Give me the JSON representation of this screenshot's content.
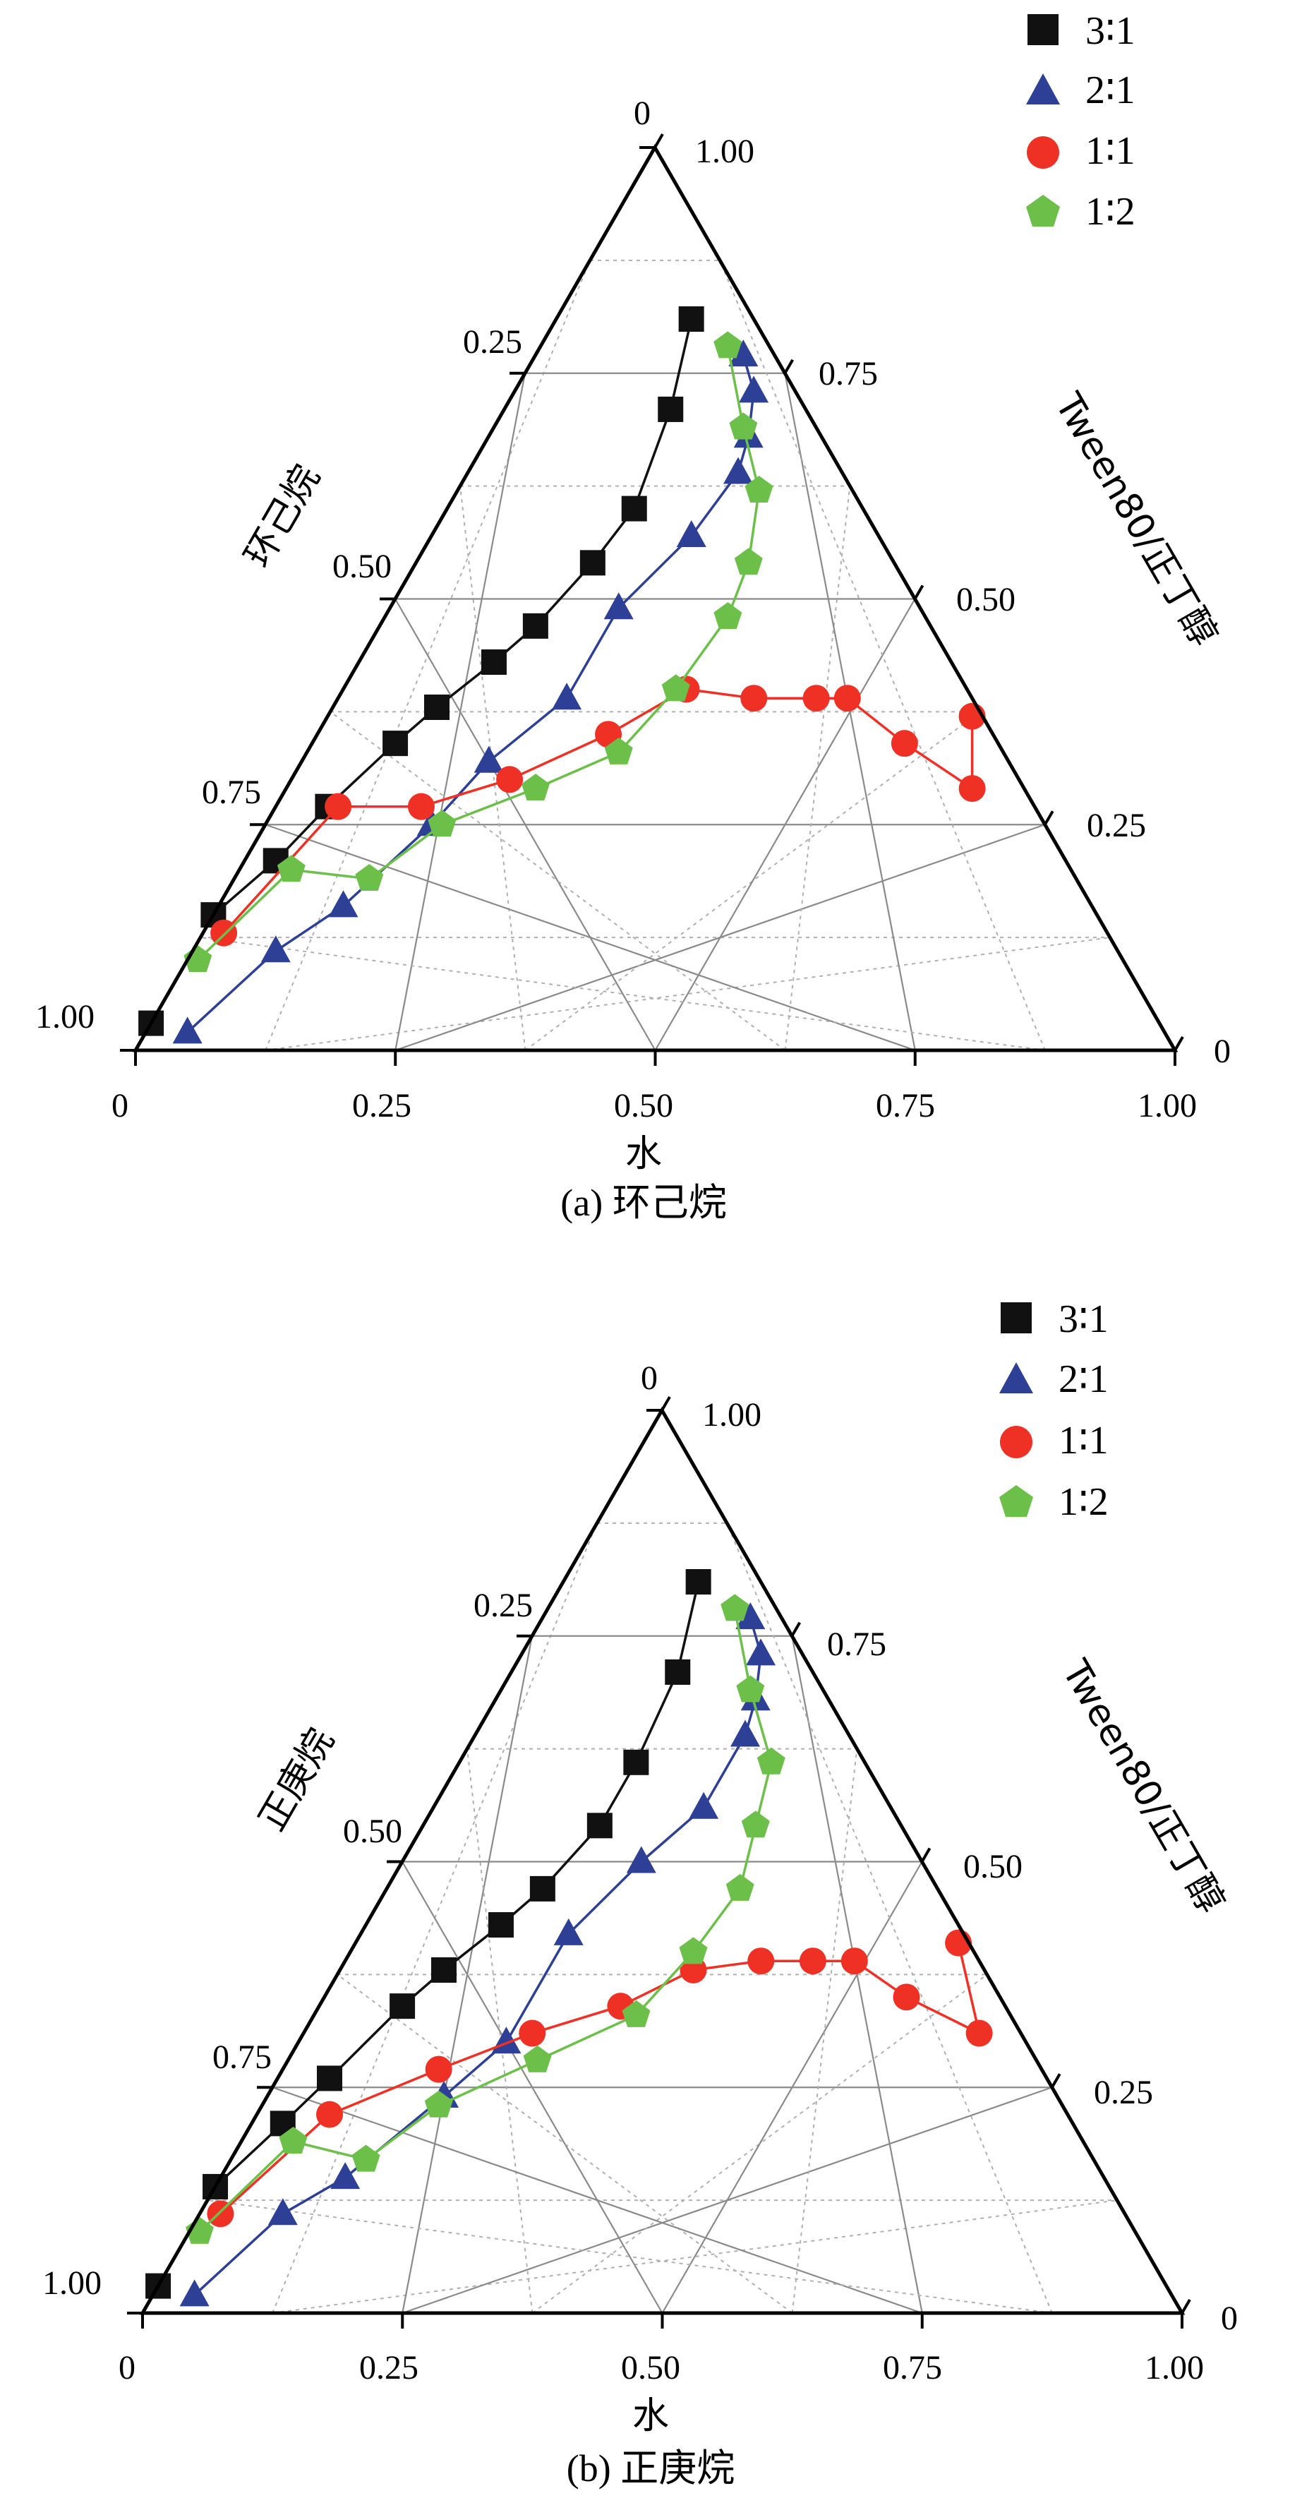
{
  "colors": {
    "s31": "#111111",
    "s21": "#2e3f96",
    "s11": "#ee3124",
    "s12": "#6cc04a"
  },
  "chart_data": [
    {
      "type": "ternary",
      "caption": "(a) 环己烷",
      "axis_labels": {
        "left": "环己烷",
        "right": "Tween80/正丁醇",
        "bottom": "水"
      },
      "tick_labels": {
        "bottom": [
          "0",
          "0.25",
          "0.50",
          "0.75",
          "1.00"
        ],
        "left": [
          "0",
          "0.25",
          "0.50",
          "0.75",
          "1.00"
        ],
        "right": [
          "1.00",
          "0.75",
          "0.50",
          "0.25",
          "0"
        ]
      },
      "grid": true,
      "legend_position": "top-right",
      "series": [
        {
          "name": "3∶1",
          "color": "#111111",
          "marker": "square",
          "points": [
            [
              0.0,
              0.97,
              0.03
            ],
            [
              0.0,
              0.85,
              0.15
            ],
            [
              0.03,
              0.76,
              0.21
            ],
            [
              0.05,
              0.68,
              0.27
            ],
            [
              0.08,
              0.58,
              0.34
            ],
            [
              0.1,
              0.52,
              0.38
            ],
            [
              0.13,
              0.44,
              0.43
            ],
            [
              0.15,
              0.38,
              0.47
            ],
            [
              0.17,
              0.29,
              0.54
            ],
            [
              0.18,
              0.22,
              0.6
            ],
            [
              0.16,
              0.13,
              0.71
            ],
            [
              0.13,
              0.06,
              0.81
            ]
          ]
        },
        {
          "name": "2∶1",
          "color": "#2e3f96",
          "marker": "triangle",
          "points": [
            [
              0.04,
              0.94,
              0.02
            ],
            [
              0.08,
              0.81,
              0.11
            ],
            [
              0.12,
              0.72,
              0.16
            ],
            [
              0.16,
              0.59,
              0.25
            ],
            [
              0.18,
              0.5,
              0.32
            ],
            [
              0.22,
              0.39,
              0.39
            ],
            [
              0.22,
              0.29,
              0.49
            ],
            [
              0.25,
              0.18,
              0.57
            ],
            [
              0.26,
              0.1,
              0.64
            ],
            [
              0.25,
              0.07,
              0.68
            ],
            [
              0.23,
              0.04,
              0.73
            ],
            [
              0.2,
              0.03,
              0.77
            ]
          ]
        },
        {
          "name": "1∶1",
          "color": "#ee3124",
          "marker": "circle",
          "points": [
            [
              0.02,
              0.85,
              0.13
            ],
            [
              0.06,
              0.67,
              0.27
            ],
            [
              0.14,
              0.59,
              0.27
            ],
            [
              0.21,
              0.49,
              0.3
            ],
            [
              0.28,
              0.37,
              0.35
            ],
            [
              0.33,
              0.27,
              0.4
            ],
            [
              0.4,
              0.21,
              0.39
            ],
            [
              0.46,
              0.15,
              0.39
            ],
            [
              0.49,
              0.12,
              0.39
            ],
            [
              0.57,
              0.09,
              0.34
            ],
            [
              0.66,
              0.05,
              0.29
            ],
            [
              0.62,
              0.01,
              0.37
            ]
          ]
        },
        {
          "name": "1∶2",
          "color": "#6cc04a",
          "marker": "pentagon",
          "points": [
            [
              0.01,
              0.89,
              0.1
            ],
            [
              0.05,
              0.75,
              0.2
            ],
            [
              0.13,
              0.68,
              0.19
            ],
            [
              0.17,
              0.58,
              0.25
            ],
            [
              0.24,
              0.47,
              0.29
            ],
            [
              0.3,
              0.37,
              0.33
            ],
            [
              0.32,
              0.28,
              0.4
            ],
            [
              0.33,
              0.19,
              0.48
            ],
            [
              0.32,
              0.14,
              0.54
            ],
            [
              0.29,
              0.09,
              0.62
            ],
            [
              0.24,
              0.07,
              0.69
            ],
            [
              0.18,
              0.04,
              0.78
            ]
          ]
        }
      ]
    },
    {
      "type": "ternary",
      "caption": "(b) 正庚烷",
      "axis_labels": {
        "left": "正庚烷",
        "right": "Tween80/正丁醇",
        "bottom": "水"
      },
      "tick_labels": {
        "bottom": [
          "0",
          "0.25",
          "0.50",
          "0.75",
          "1.00"
        ],
        "left": [
          "0",
          "0.25",
          "0.50",
          "0.75",
          "1.00"
        ],
        "right": [
          "1.00",
          "0.75",
          "0.50",
          "0.25",
          "0"
        ]
      },
      "grid": true,
      "legend_position": "top-right",
      "series": [
        {
          "name": "3∶1",
          "color": "#111111",
          "marker": "square",
          "points": [
            [
              0.0,
              0.97,
              0.03
            ],
            [
              0.0,
              0.86,
              0.14
            ],
            [
              0.03,
              0.76,
              0.21
            ],
            [
              0.05,
              0.69,
              0.26
            ],
            [
              0.08,
              0.58,
              0.34
            ],
            [
              0.1,
              0.52,
              0.38
            ],
            [
              0.13,
              0.44,
              0.43
            ],
            [
              0.15,
              0.38,
              0.47
            ],
            [
              0.17,
              0.29,
              0.54
            ],
            [
              0.17,
              0.22,
              0.61
            ],
            [
              0.16,
              0.13,
              0.71
            ],
            [
              0.13,
              0.06,
              0.81
            ]
          ]
        },
        {
          "name": "2∶1",
          "color": "#2e3f96",
          "marker": "triangle",
          "points": [
            [
              0.04,
              0.94,
              0.02
            ],
            [
              0.08,
              0.81,
              0.11
            ],
            [
              0.12,
              0.73,
              0.15
            ],
            [
              0.17,
              0.59,
              0.24
            ],
            [
              0.2,
              0.5,
              0.3
            ],
            [
              0.2,
              0.38,
              0.42
            ],
            [
              0.23,
              0.27,
              0.5
            ],
            [
              0.26,
              0.18,
              0.56
            ],
            [
              0.26,
              0.1,
              0.64
            ],
            [
              0.25,
              0.07,
              0.68
            ],
            [
              0.23,
              0.04,
              0.73
            ],
            [
              0.2,
              0.03,
              0.77
            ]
          ]
        },
        {
          "name": "1∶1",
          "color": "#ee3124",
          "marker": "circle",
          "points": [
            [
              0.02,
              0.87,
              0.11
            ],
            [
              0.07,
              0.71,
              0.22
            ],
            [
              0.15,
              0.58,
              0.27
            ],
            [
              0.22,
              0.47,
              0.31
            ],
            [
              0.29,
              0.37,
              0.34
            ],
            [
              0.34,
              0.28,
              0.38
            ],
            [
              0.4,
              0.21,
              0.39
            ],
            [
              0.45,
              0.16,
              0.39
            ],
            [
              0.49,
              0.12,
              0.39
            ],
            [
              0.56,
              0.09,
              0.35
            ],
            [
              0.65,
              0.04,
              0.31
            ],
            [
              0.58,
              0.01,
              0.41
            ]
          ]
        },
        {
          "name": "1∶2",
          "color": "#6cc04a",
          "marker": "pentagon",
          "points": [
            [
              0.01,
              0.9,
              0.09
            ],
            [
              0.05,
              0.76,
              0.19
            ],
            [
              0.13,
              0.7,
              0.17
            ],
            [
              0.17,
              0.6,
              0.23
            ],
            [
              0.24,
              0.48,
              0.28
            ],
            [
              0.31,
              0.36,
              0.33
            ],
            [
              0.33,
              0.27,
              0.4
            ],
            [
              0.34,
              0.19,
              0.47
            ],
            [
              0.32,
              0.14,
              0.54
            ],
            [
              0.3,
              0.09,
              0.61
            ],
            [
              0.24,
              0.07,
              0.69
            ],
            [
              0.18,
              0.04,
              0.78
            ]
          ]
        }
      ]
    }
  ]
}
